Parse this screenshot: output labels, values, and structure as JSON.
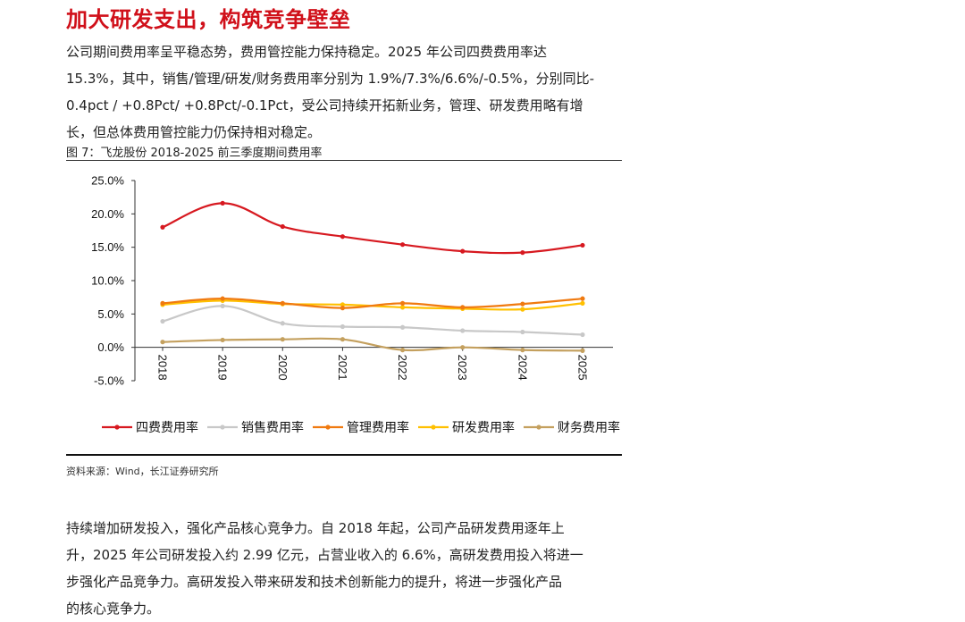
{
  "header": {
    "title": "加大研发支出，构筑竞争壁垒"
  },
  "paragraph1": {
    "lines": [
      "公司期间费用率呈平稳态势，费用管控能力保持稳定。2025 年公司四费费用率达",
      "15.3%，其中，销售/管理/研发/财务费用率分别为 1.9%/7.3%/6.6%/-0.5%，分别同比-",
      "0.4pct / +0.8Pct/ +0.8Pct/-0.1Pct，受公司持续开拓新业务，管理、研发费用略有增",
      "长，但总体费用管控能力仍保持相对稳定。"
    ]
  },
  "figure": {
    "caption": "图 7：飞龙股份 2018-2025 前三季度期间费用率",
    "source": "资料来源：Wind，长江证券研究所"
  },
  "chart_data": {
    "type": "line",
    "x": [
      "2018",
      "2019",
      "2020",
      "2021",
      "2022",
      "2023",
      "2024",
      "2025"
    ],
    "ylim": [
      -5.0,
      25.0
    ],
    "yticks": [
      "25.0%",
      "20.0%",
      "15.0%",
      "10.0%",
      "5.0%",
      "0.0%",
      "-5.0%"
    ],
    "ytick_values": [
      25,
      20,
      15,
      10,
      5,
      0,
      -5
    ],
    "legend_position": "bottom",
    "grid": false,
    "series": [
      {
        "name": "四费费用率",
        "color": "#d71920",
        "values": [
          18.0,
          21.6,
          18.1,
          16.6,
          15.4,
          14.4,
          14.2,
          15.3
        ]
      },
      {
        "name": "销售费用率",
        "color": "#c8c8c8",
        "values": [
          3.9,
          6.2,
          3.6,
          3.1,
          3.0,
          2.5,
          2.3,
          1.9
        ]
      },
      {
        "name": "管理费用率",
        "color": "#f07a10",
        "values": [
          6.6,
          7.3,
          6.6,
          5.9,
          6.6,
          6.0,
          6.5,
          7.3
        ]
      },
      {
        "name": "研发费用率",
        "color": "#ffc000",
        "values": [
          6.4,
          7.0,
          6.5,
          6.4,
          6.0,
          5.8,
          5.7,
          6.6
        ]
      },
      {
        "name": "财务费用率",
        "color": "#c4a05e",
        "values": [
          0.8,
          1.1,
          1.2,
          1.2,
          -0.4,
          0.0,
          -0.4,
          -0.5
        ]
      }
    ]
  },
  "paragraph2": {
    "lines": [
      "持续增加研发投入，强化产品核心竞争力。自 2018 年起，公司产品研发费用逐年上",
      "升，2025 年公司研发投入约 2.99 亿元，占营业收入的 6.6%，高研发费用投入将进一",
      "步强化产品竞争力。高研发投入带来研发和技术创新能力的提升，将进一步强化产品",
      "的核心竞争力。"
    ]
  }
}
